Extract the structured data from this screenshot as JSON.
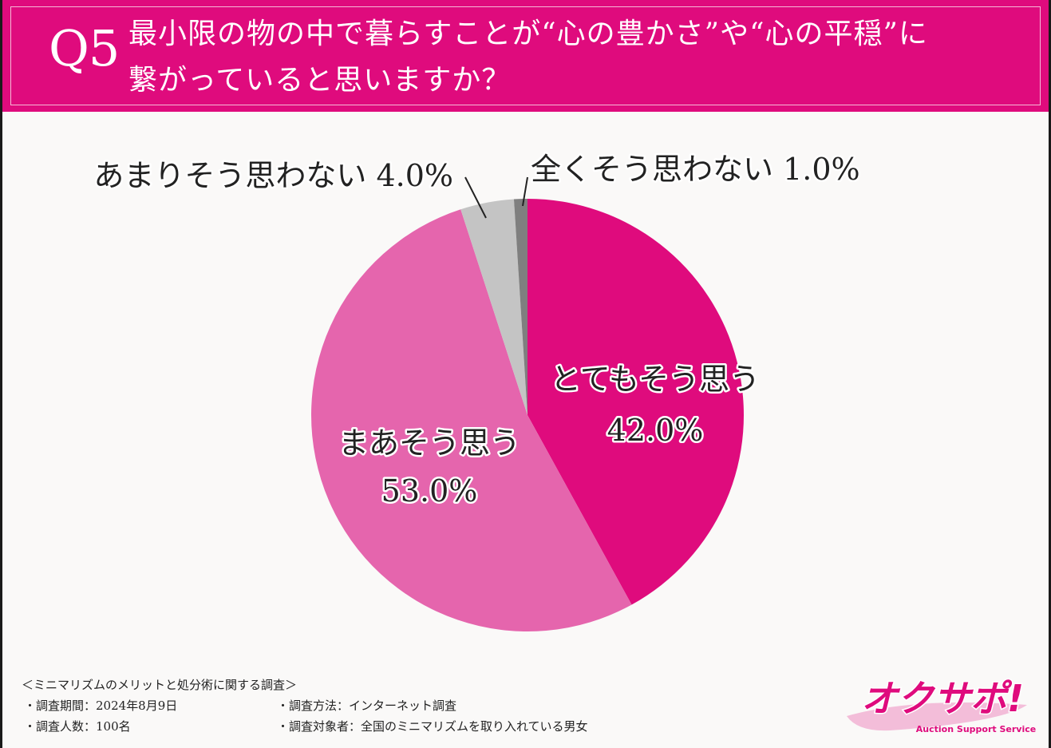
{
  "header": {
    "question_number": "Q5",
    "question_line1": "最小限の物の中で暮らすことが“心の豊かさ”や“心の平穏”に",
    "question_line2": "繋がっていると思いますか？"
  },
  "chart_data": {
    "type": "pie",
    "start_angle_deg": 0,
    "direction": "clockwise",
    "categories": [
      "とてもそう思う",
      "まあそう思う",
      "あまりそう思わない",
      "全くそう思わない"
    ],
    "values": [
      42.0,
      53.0,
      4.0,
      1.0
    ],
    "value_labels": [
      "42.0%",
      "53.0%",
      "4.0%",
      "1.0%"
    ],
    "colors": [
      "#df0b7d",
      "#e565ad",
      "#c4c4c4",
      "#7f7f7f"
    ]
  },
  "labels": {
    "slice1_name": "とてもそう思う",
    "slice1_value": "42.0%",
    "slice2_name": "まあそう思う",
    "slice2_value": "53.0%",
    "slice3_text": "あまりそう思わない 4.0%",
    "slice4_text": "全くそう思わない 1.0%"
  },
  "footer": {
    "title": "＜ミニマリズムのメリットと処分術に関する調査＞",
    "period": "・調査期間：2024年8月9日",
    "count": "・調査人数：100名",
    "method": "・調査方法：インターネット調査",
    "target": "・調査対象者：全国のミニマリズムを取り入れている男女"
  },
  "logo": {
    "text": "オクサポ!",
    "subtext": "Auction Support Service"
  }
}
